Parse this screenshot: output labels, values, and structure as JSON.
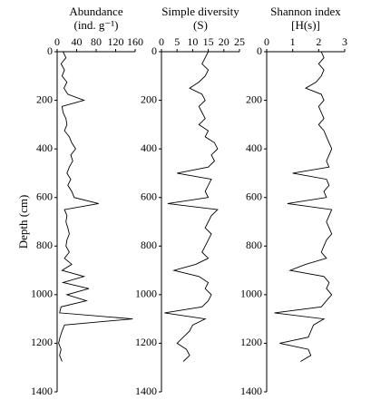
{
  "chart_data": [
    {
      "type": "line",
      "title": [
        "Abundance",
        "(ind. g⁻¹)"
      ],
      "ylabel": "Depth (cm)",
      "y_inverted": true,
      "color": "#000000",
      "xlim": [
        0,
        160
      ],
      "xticks": [
        0,
        40,
        80,
        120,
        160
      ],
      "ylim": [
        0,
        1400
      ],
      "yticks": [
        0,
        200,
        400,
        600,
        800,
        1000,
        1200,
        1400
      ],
      "y": [
        0,
        25,
        50,
        75,
        100,
        125,
        150,
        175,
        200,
        225,
        250,
        275,
        300,
        325,
        350,
        375,
        400,
        425,
        450,
        475,
        500,
        525,
        550,
        575,
        600,
        625,
        650,
        675,
        700,
        725,
        750,
        775,
        800,
        825,
        850,
        875,
        900,
        925,
        950,
        975,
        1000,
        1025,
        1050,
        1075,
        1100,
        1125,
        1150,
        1175,
        1200,
        1225,
        1250,
        1275
      ],
      "values": [
        12,
        18,
        8,
        15,
        10,
        20,
        14,
        22,
        55,
        10,
        12,
        18,
        20,
        15,
        25,
        30,
        38,
        28,
        32,
        25,
        20,
        28,
        22,
        30,
        35,
        85,
        15,
        20,
        18,
        22,
        25,
        20,
        18,
        25,
        15,
        30,
        10,
        55,
        12,
        65,
        20,
        60,
        8,
        5,
        155,
        15,
        10,
        6,
        3,
        8,
        5,
        10
      ]
    },
    {
      "type": "line",
      "title": [
        "Simple diversity",
        "(S)"
      ],
      "y_inverted": true,
      "color": "#000000",
      "xlim": [
        0,
        25
      ],
      "xticks": [
        0,
        5,
        10,
        15,
        20,
        25
      ],
      "ylim": [
        0,
        1400
      ],
      "yticks": [
        0,
        200,
        400,
        600,
        800,
        1000,
        1200,
        1400
      ],
      "y": [
        0,
        25,
        50,
        75,
        100,
        125,
        150,
        175,
        200,
        225,
        250,
        275,
        300,
        325,
        350,
        375,
        400,
        425,
        450,
        475,
        500,
        525,
        550,
        575,
        600,
        625,
        650,
        675,
        700,
        725,
        750,
        775,
        800,
        825,
        850,
        875,
        900,
        925,
        950,
        975,
        1000,
        1025,
        1050,
        1075,
        1100,
        1125,
        1150,
        1175,
        1200,
        1225,
        1250,
        1275
      ],
      "values": [
        15,
        14,
        13,
        15,
        14,
        12,
        9,
        13,
        14,
        12,
        13,
        14,
        12,
        15,
        14,
        17,
        18,
        16,
        17,
        15,
        5,
        16,
        15,
        14,
        15,
        2,
        18,
        16,
        15,
        14,
        16,
        15,
        14,
        13,
        15,
        11,
        4,
        12,
        15,
        14,
        16,
        15,
        13,
        1,
        14,
        10,
        9,
        7,
        5,
        8,
        9,
        7
      ]
    },
    {
      "type": "line",
      "title": [
        "Shannon index",
        "[H(s)]"
      ],
      "y_inverted": true,
      "color": "#000000",
      "xlim": [
        0,
        3
      ],
      "xticks": [
        0,
        1,
        2,
        3
      ],
      "ylim": [
        0,
        1400
      ],
      "yticks": [
        0,
        200,
        400,
        600,
        800,
        1000,
        1200,
        1400
      ],
      "y": [
        0,
        25,
        50,
        75,
        100,
        125,
        150,
        175,
        200,
        225,
        250,
        275,
        300,
        325,
        350,
        375,
        400,
        425,
        450,
        475,
        500,
        525,
        550,
        575,
        600,
        625,
        650,
        675,
        700,
        725,
        750,
        775,
        800,
        825,
        850,
        875,
        900,
        925,
        950,
        975,
        1000,
        1025,
        1050,
        1075,
        1100,
        1125,
        1150,
        1175,
        1200,
        1225,
        1250,
        1275
      ],
      "values": [
        2.1,
        2.2,
        2.0,
        2.2,
        2.1,
        1.9,
        1.5,
        2.1,
        2.2,
        2.0,
        2.1,
        2.2,
        2.0,
        2.2,
        2.3,
        2.4,
        2.5,
        2.4,
        2.3,
        2.4,
        1.0,
        2.3,
        2.4,
        2.2,
        2.3,
        0.8,
        2.5,
        2.4,
        2.3,
        2.4,
        2.5,
        2.3,
        2.2,
        2.1,
        2.3,
        1.5,
        0.9,
        2.2,
        2.4,
        2.3,
        2.5,
        2.3,
        2.1,
        0.3,
        2.2,
        1.8,
        1.7,
        1.6,
        0.5,
        1.6,
        1.7,
        1.3
      ]
    }
  ]
}
